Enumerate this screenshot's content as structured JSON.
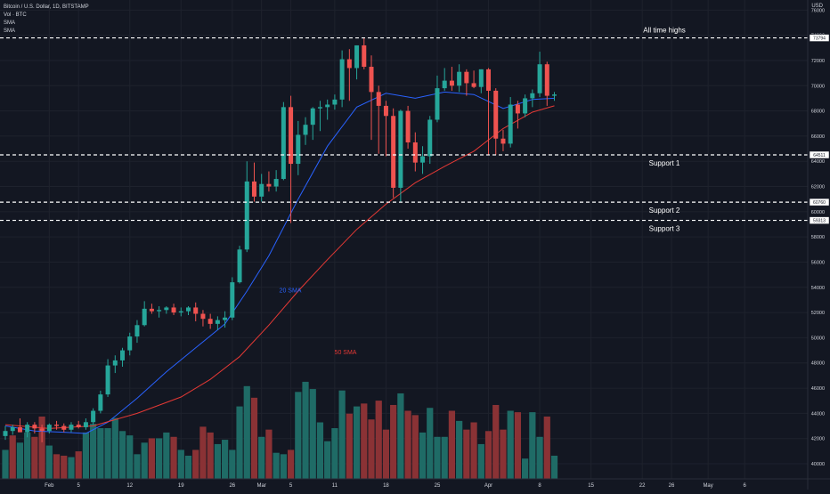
{
  "legend": {
    "symbol": "Bitcoin / U.S. Dollar, 1D, BITSTAMP",
    "vol": "Vol · BTC",
    "sma1": "SMA",
    "sma2": "SMA"
  },
  "currency": "USD",
  "colors": {
    "background": "#131722",
    "up": "#26a69a",
    "down": "#ef5350",
    "vol_up": "#1f6b66",
    "vol_down": "#8a3235",
    "sma20": "#2962ff",
    "sma50": "#e53935",
    "grid": "#1e222d",
    "level": "#ffffff",
    "text": "#d1d4dc"
  },
  "chart_data": {
    "type": "candlestick",
    "title": "Bitcoin / U.S. Dollar, 1D, BITSTAMP",
    "ylim": [
      38800,
      76800
    ],
    "y_ticks": [
      40000,
      42000,
      44000,
      46000,
      48000,
      50000,
      52000,
      54000,
      56000,
      58000,
      60000,
      62000,
      64000,
      66000,
      68000,
      70000,
      72000,
      74000,
      76000
    ],
    "x_ticks": [
      {
        "label": "Feb",
        "index": 6
      },
      {
        "label": "5",
        "index": 10
      },
      {
        "label": "12",
        "index": 17
      },
      {
        "label": "19",
        "index": 24
      },
      {
        "label": "26",
        "index": 31
      },
      {
        "label": "Mar",
        "index": 35
      },
      {
        "label": "5",
        "index": 39
      },
      {
        "label": "11",
        "index": 45
      },
      {
        "label": "18",
        "index": 52
      },
      {
        "label": "25",
        "index": 59
      },
      {
        "label": "Apr",
        "index": 66
      },
      {
        "label": "8",
        "index": 73
      },
      {
        "label": "15",
        "index": 80
      },
      {
        "label": "22",
        "index": 87
      },
      {
        "label": "26",
        "index": 91
      },
      {
        "label": "May",
        "index": 96
      },
      {
        "label": "6",
        "index": 101
      }
    ],
    "candles": [
      {
        "o": 42200,
        "h": 43000,
        "l": 41900,
        "c": 42600
      },
      {
        "o": 42600,
        "h": 43100,
        "l": 42300,
        "c": 42900
      },
      {
        "o": 42900,
        "h": 43600,
        "l": 42500,
        "c": 42500
      },
      {
        "o": 42500,
        "h": 43300,
        "l": 42100,
        "c": 43100
      },
      {
        "o": 43100,
        "h": 43300,
        "l": 42400,
        "c": 42800
      },
      {
        "o": 42800,
        "h": 43100,
        "l": 41700,
        "c": 42600
      },
      {
        "o": 42600,
        "h": 43200,
        "l": 42400,
        "c": 43100
      },
      {
        "o": 43100,
        "h": 43400,
        "l": 42700,
        "c": 43000
      },
      {
        "o": 43000,
        "h": 43200,
        "l": 42500,
        "c": 42700
      },
      {
        "o": 42700,
        "h": 43300,
        "l": 42500,
        "c": 43100
      },
      {
        "o": 43100,
        "h": 43400,
        "l": 42800,
        "c": 42900
      },
      {
        "o": 42900,
        "h": 43600,
        "l": 42700,
        "c": 43300
      },
      {
        "o": 43300,
        "h": 44400,
        "l": 43100,
        "c": 44200
      },
      {
        "o": 44200,
        "h": 45800,
        "l": 44000,
        "c": 45500
      },
      {
        "o": 45500,
        "h": 48300,
        "l": 45300,
        "c": 47800
      },
      {
        "o": 47800,
        "h": 48600,
        "l": 47200,
        "c": 48200
      },
      {
        "o": 48200,
        "h": 49200,
        "l": 47700,
        "c": 49000
      },
      {
        "o": 49000,
        "h": 50400,
        "l": 48600,
        "c": 50100
      },
      {
        "o": 50100,
        "h": 51400,
        "l": 49600,
        "c": 51000
      },
      {
        "o": 51000,
        "h": 52900,
        "l": 50900,
        "c": 52300
      },
      {
        "o": 52300,
        "h": 52700,
        "l": 51900,
        "c": 52100
      },
      {
        "o": 52100,
        "h": 52500,
        "l": 51600,
        "c": 52200
      },
      {
        "o": 52200,
        "h": 52500,
        "l": 51900,
        "c": 52400
      },
      {
        "o": 52400,
        "h": 52700,
        "l": 51800,
        "c": 52000
      },
      {
        "o": 52000,
        "h": 52400,
        "l": 51700,
        "c": 52100
      },
      {
        "o": 52100,
        "h": 52500,
        "l": 51800,
        "c": 52400
      },
      {
        "o": 52400,
        "h": 52800,
        "l": 51300,
        "c": 51900
      },
      {
        "o": 51900,
        "h": 52200,
        "l": 50900,
        "c": 51500
      },
      {
        "o": 51500,
        "h": 51900,
        "l": 50700,
        "c": 51100
      },
      {
        "o": 51100,
        "h": 51700,
        "l": 50600,
        "c": 51400
      },
      {
        "o": 51400,
        "h": 52100,
        "l": 50800,
        "c": 51600
      },
      {
        "o": 51600,
        "h": 54800,
        "l": 51400,
        "c": 54400
      },
      {
        "o": 54400,
        "h": 57300,
        "l": 54300,
        "c": 57000
      },
      {
        "o": 57000,
        "h": 64000,
        "l": 56800,
        "c": 62400
      },
      {
        "o": 62400,
        "h": 63900,
        "l": 60800,
        "c": 61200
      },
      {
        "o": 61200,
        "h": 63000,
        "l": 60800,
        "c": 62200
      },
      {
        "o": 62200,
        "h": 63200,
        "l": 61600,
        "c": 62000
      },
      {
        "o": 62000,
        "h": 63300,
        "l": 61600,
        "c": 62600
      },
      {
        "o": 62600,
        "h": 68700,
        "l": 62500,
        "c": 68300
      },
      {
        "o": 68300,
        "h": 69200,
        "l": 59100,
        "c": 63800
      },
      {
        "o": 63800,
        "h": 67200,
        "l": 62900,
        "c": 66100
      },
      {
        "o": 66100,
        "h": 67500,
        "l": 65300,
        "c": 66900
      },
      {
        "o": 66900,
        "h": 68300,
        "l": 65700,
        "c": 68200
      },
      {
        "o": 68200,
        "h": 68800,
        "l": 66400,
        "c": 68300
      },
      {
        "o": 68300,
        "h": 68900,
        "l": 67300,
        "c": 68500
      },
      {
        "o": 68500,
        "h": 69300,
        "l": 68100,
        "c": 68900
      },
      {
        "o": 68900,
        "h": 72800,
        "l": 68300,
        "c": 72100
      },
      {
        "o": 72100,
        "h": 72900,
        "l": 68800,
        "c": 71400
      },
      {
        "o": 71400,
        "h": 73200,
        "l": 70500,
        "c": 73200
      },
      {
        "o": 73200,
        "h": 73800,
        "l": 71300,
        "c": 71500
      },
      {
        "o": 71500,
        "h": 72400,
        "l": 65700,
        "c": 69500
      },
      {
        "o": 69500,
        "h": 70000,
        "l": 64600,
        "c": 68400
      },
      {
        "o": 68400,
        "h": 68800,
        "l": 64400,
        "c": 67600
      },
      {
        "o": 67600,
        "h": 68200,
        "l": 61100,
        "c": 61900
      },
      {
        "o": 61900,
        "h": 68100,
        "l": 60800,
        "c": 68000
      },
      {
        "o": 68000,
        "h": 68400,
        "l": 65000,
        "c": 65500
      },
      {
        "o": 65500,
        "h": 66300,
        "l": 63200,
        "c": 63900
      },
      {
        "o": 63900,
        "h": 65200,
        "l": 63000,
        "c": 64400
      },
      {
        "o": 64400,
        "h": 67600,
        "l": 63800,
        "c": 67300
      },
      {
        "o": 67300,
        "h": 70800,
        "l": 67100,
        "c": 69800
      },
      {
        "o": 69800,
        "h": 71400,
        "l": 69600,
        "c": 70400
      },
      {
        "o": 70400,
        "h": 71500,
        "l": 69600,
        "c": 70000
      },
      {
        "o": 70000,
        "h": 71700,
        "l": 69500,
        "c": 71100
      },
      {
        "o": 71100,
        "h": 71300,
        "l": 69200,
        "c": 70200
      },
      {
        "o": 70200,
        "h": 71200,
        "l": 69800,
        "c": 69900
      },
      {
        "o": 69900,
        "h": 71300,
        "l": 69400,
        "c": 71300
      },
      {
        "o": 71300,
        "h": 71400,
        "l": 64500,
        "c": 69600
      },
      {
        "o": 69600,
        "h": 69800,
        "l": 64500,
        "c": 65800
      },
      {
        "o": 65800,
        "h": 66500,
        "l": 64800,
        "c": 65400
      },
      {
        "o": 65400,
        "h": 69100,
        "l": 65100,
        "c": 68500
      },
      {
        "o": 68500,
        "h": 68800,
        "l": 66600,
        "c": 67800
      },
      {
        "o": 67800,
        "h": 69300,
        "l": 67500,
        "c": 69000
      },
      {
        "o": 69000,
        "h": 69700,
        "l": 68300,
        "c": 69400
      },
      {
        "o": 69400,
        "h": 72700,
        "l": 69100,
        "c": 71700
      },
      {
        "o": 71700,
        "h": 71900,
        "l": 68400,
        "c": 69200
      },
      {
        "o": 69200,
        "h": 69500,
        "l": 68800,
        "c": 69300
      }
    ],
    "volume": [
      2000,
      3000,
      2500,
      3200,
      2900,
      4300,
      2300,
      1700,
      1600,
      1500,
      1900,
      3200,
      3800,
      3500,
      3500,
      4200,
      3300,
      3000,
      1700,
      2500,
      2800,
      2800,
      3200,
      2900,
      2000,
      1600,
      2000,
      3600,
      3200,
      2400,
      2700,
      2000,
      5000,
      6400,
      5600,
      2900,
      3400,
      1800,
      1700,
      2000,
      6000,
      6700,
      6200,
      3900,
      2600,
      3500,
      6100,
      4500,
      5000,
      5200,
      4100,
      5400,
      3400,
      5100,
      5900,
      4700,
      4400,
      3200,
      4900,
      2900,
      2900,
      4700,
      4000,
      3400,
      3900,
      2400,
      3300,
      5100,
      3400,
      4700,
      4600,
      1400,
      4600,
      2900,
      4300,
      1600
    ],
    "volume_up": [
      1,
      0,
      1,
      1,
      0,
      0,
      1,
      0,
      0,
      1,
      0,
      1,
      1,
      1,
      1,
      1,
      1,
      1,
      1,
      1,
      0,
      1,
      1,
      0,
      1,
      1,
      0,
      0,
      0,
      1,
      1,
      1,
      1,
      1,
      0,
      1,
      0,
      1,
      1,
      0,
      1,
      1,
      1,
      1,
      1,
      1,
      1,
      0,
      1,
      0,
      0,
      0,
      0,
      0,
      1,
      0,
      0,
      1,
      1,
      1,
      1,
      0,
      1,
      0,
      0,
      1,
      0,
      0,
      0,
      1,
      0,
      1,
      1,
      1,
      0,
      1
    ],
    "vol_ylim": [
      0,
      8600
    ],
    "sma20": [
      [
        0,
        43000
      ],
      [
        4,
        42600
      ],
      [
        8,
        42500
      ],
      [
        11,
        42400
      ],
      [
        14,
        43300
      ],
      [
        18,
        45200
      ],
      [
        22,
        47300
      ],
      [
        26,
        49200
      ],
      [
        30,
        51100
      ],
      [
        33,
        53700
      ],
      [
        36,
        56500
      ],
      [
        40,
        61000
      ],
      [
        44,
        65200
      ],
      [
        48,
        68300
      ],
      [
        52,
        69400
      ],
      [
        56,
        69000
      ],
      [
        60,
        69500
      ],
      [
        64,
        69300
      ],
      [
        68,
        68200
      ],
      [
        72,
        68900
      ],
      [
        75,
        69000
      ]
    ],
    "sma50": [
      [
        0,
        43100
      ],
      [
        6,
        42800
      ],
      [
        12,
        43000
      ],
      [
        18,
        44000
      ],
      [
        24,
        45300
      ],
      [
        28,
        46700
      ],
      [
        32,
        48500
      ],
      [
        36,
        51000
      ],
      [
        40,
        53700
      ],
      [
        44,
        56200
      ],
      [
        48,
        58600
      ],
      [
        52,
        60600
      ],
      [
        56,
        62300
      ],
      [
        60,
        63600
      ],
      [
        64,
        64800
      ],
      [
        68,
        66600
      ],
      [
        72,
        67900
      ],
      [
        75,
        68400
      ]
    ],
    "annotations": [
      {
        "name": "All time highs",
        "price": 73794,
        "price_label": "73794",
        "label_pos": "top"
      },
      {
        "name": "Support 1",
        "price": 64511,
        "price_label": "64511",
        "label_pos": "bottom"
      },
      {
        "name": "Support 2",
        "price": 60760,
        "price_label": "60760",
        "label_pos": "bottom"
      },
      {
        "name": "Support 3",
        "price": 59313,
        "price_label": "59313",
        "label_pos": "bottom"
      }
    ],
    "line_labels": [
      {
        "text": "20 SMA",
        "series": "sma20",
        "price": 53600
      },
      {
        "text": "50 SMA",
        "series": "sma50",
        "price": 48700
      }
    ]
  }
}
